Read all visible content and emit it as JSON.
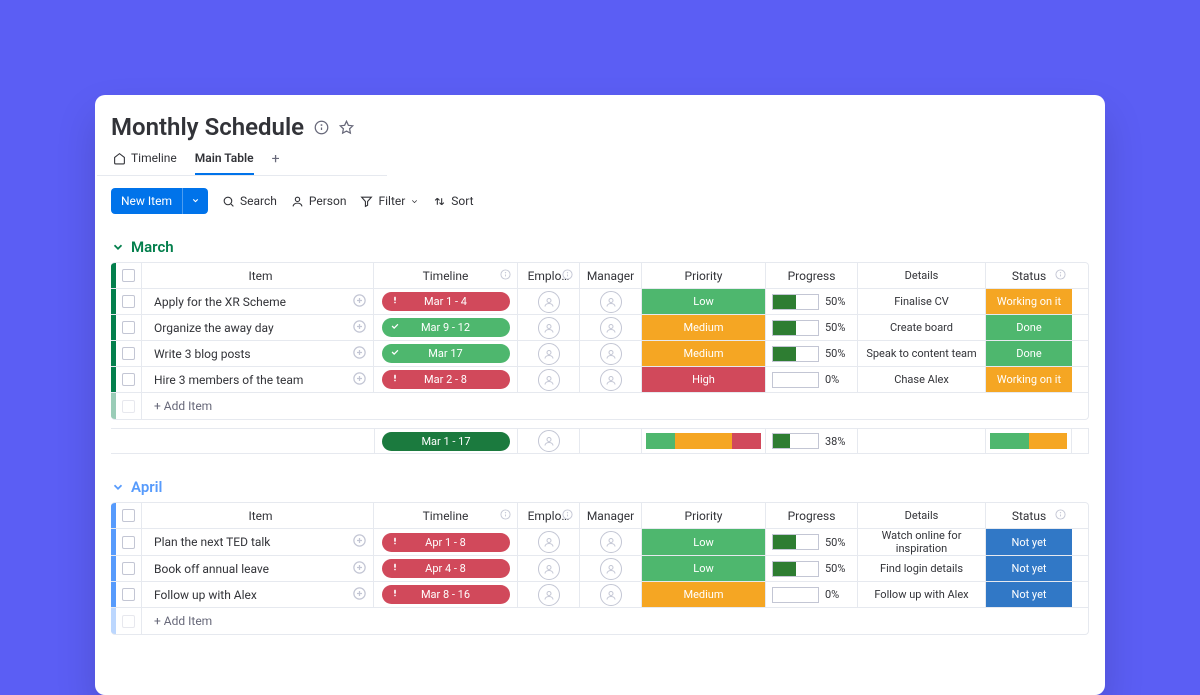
{
  "colors": {
    "page_bg": "#5b5ef4",
    "card_bg": "#ffffff",
    "border": "#e6e9ef",
    "text": "#323338",
    "muted": "#676879",
    "primary_blue": "#0073ea",
    "march_accent": "#037f4c",
    "april_accent": "#579bfc",
    "priority_low": "#4eb76e",
    "priority_medium": "#f5a623",
    "priority_high": "#d1495b",
    "status_working": "#f5a623",
    "status_done": "#4eb76e",
    "status_notyet": "#3178c6",
    "timeline_red": "#d1495b",
    "timeline_green": "#4eb76e",
    "timeline_darkgreen": "#1b7a3e",
    "progress_fill": "#2e7d32"
  },
  "board": {
    "title": "Monthly Schedule"
  },
  "tabs": [
    {
      "label": "Timeline",
      "icon": "home",
      "active": false
    },
    {
      "label": "Main Table",
      "icon": "",
      "active": true
    }
  ],
  "toolbar": {
    "new_item_label": "New Item",
    "search_label": "Search",
    "person_label": "Person",
    "filter_label": "Filter",
    "sort_label": "Sort"
  },
  "columns": {
    "item": "Item",
    "timeline": "Timeline",
    "employee": "Emplo…",
    "manager": "Manager",
    "priority": "Priority",
    "progress": "Progress",
    "details": "Details",
    "status": "Status"
  },
  "add_item_label": "+ Add Item",
  "groups": [
    {
      "name": "March",
      "accent": "#037f4c",
      "rows": [
        {
          "item": "Apply for the XR Scheme",
          "timeline": "Mar 1 - 4",
          "tl_color": "#d1495b",
          "tl_icon": "alert",
          "priority": "Low",
          "pr_color": "#4eb76e",
          "progress": 50,
          "details": "Finalise CV",
          "status": "Working on it",
          "st_color": "#f5a623"
        },
        {
          "item": "Organize the away day",
          "timeline": "Mar 9 - 12",
          "tl_color": "#4eb76e",
          "tl_icon": "check",
          "priority": "Medium",
          "pr_color": "#f5a623",
          "progress": 50,
          "details": "Create board",
          "status": "Done",
          "st_color": "#4eb76e"
        },
        {
          "item": "Write 3 blog posts",
          "timeline": "Mar 17",
          "tl_color": "#4eb76e",
          "tl_icon": "check",
          "priority": "Medium",
          "pr_color": "#f5a623",
          "progress": 50,
          "details": "Speak to content team",
          "status": "Done",
          "st_color": "#4eb76e"
        },
        {
          "item": "Hire 3 members of the team",
          "timeline": "Mar 2 - 8",
          "tl_color": "#d1495b",
          "tl_icon": "alert",
          "priority": "High",
          "pr_color": "#d1495b",
          "progress": 0,
          "details": "Chase Alex",
          "status": "Working on it",
          "st_color": "#f5a623"
        }
      ],
      "summary": {
        "timeline": "Mar 1 - 17",
        "progress": 38,
        "priority_segments": [
          {
            "color": "#4eb76e",
            "pct": 25
          },
          {
            "color": "#f5a623",
            "pct": 50
          },
          {
            "color": "#d1495b",
            "pct": 25
          }
        ],
        "status_segments": [
          {
            "color": "#4eb76e",
            "pct": 50
          },
          {
            "color": "#f5a623",
            "pct": 50
          }
        ]
      }
    },
    {
      "name": "April",
      "accent": "#579bfc",
      "rows": [
        {
          "item": "Plan the next TED talk",
          "timeline": "Apr 1 - 8",
          "tl_color": "#d1495b",
          "tl_icon": "alert",
          "priority": "Low",
          "pr_color": "#4eb76e",
          "progress": 50,
          "details": "Watch online for inspiration",
          "status": "Not yet",
          "st_color": "#3178c6"
        },
        {
          "item": "Book off annual leave",
          "timeline": "Apr 4 - 8",
          "tl_color": "#d1495b",
          "tl_icon": "alert",
          "priority": "Low",
          "pr_color": "#4eb76e",
          "progress": 50,
          "details": "Find login details",
          "status": "Not yet",
          "st_color": "#3178c6"
        },
        {
          "item": "Follow up with Alex",
          "timeline": "Mar 8 - 16",
          "tl_color": "#d1495b",
          "tl_icon": "alert",
          "priority": "Medium",
          "pr_color": "#f5a623",
          "progress": 0,
          "details": "Follow up with Alex",
          "status": "Not yet",
          "st_color": "#3178c6"
        }
      ],
      "summary": null
    }
  ]
}
